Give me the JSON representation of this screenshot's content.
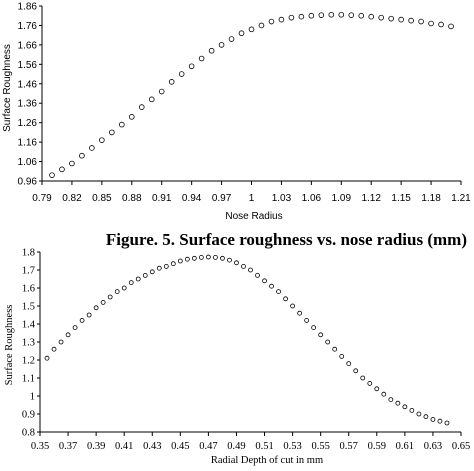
{
  "chart_data": [
    {
      "type": "scatter",
      "title": "",
      "xlabel": "Nose Radius",
      "ylabel": "Surface Roughness",
      "xlim": [
        0.79,
        1.21
      ],
      "ylim": [
        0.96,
        1.86
      ],
      "x_ticks": [
        0.79,
        0.82,
        0.85,
        0.88,
        0.91,
        0.94,
        0.97,
        1,
        1.03,
        1.06,
        1.09,
        1.12,
        1.15,
        1.18,
        1.21
      ],
      "x_tick_labels": [
        "0.79",
        "0.82",
        "0.85",
        "0.88",
        "0.91",
        "0.94",
        "0.97",
        "1",
        "1.03",
        "1.06",
        "1.09",
        "1.12",
        "1.15",
        "1.18",
        "1.21"
      ],
      "y_ticks": [
        0.96,
        1.06,
        1.16,
        1.26,
        1.36,
        1.46,
        1.56,
        1.66,
        1.76,
        1.86
      ],
      "y_tick_labels": [
        "0.96",
        "1.06",
        "1.16",
        "1.26",
        "1.36",
        "1.46",
        "1.56",
        "1.66",
        "1.76",
        "1.86"
      ],
      "grid": false,
      "legend": "none",
      "marker": "open-circle",
      "series": [
        {
          "x": [
            0.8,
            0.81,
            0.82,
            0.83,
            0.84,
            0.85,
            0.86,
            0.87,
            0.88,
            0.89,
            0.9,
            0.91,
            0.92,
            0.93,
            0.94,
            0.95,
            0.96,
            0.97,
            0.98,
            0.99,
            1.0,
            1.01,
            1.02,
            1.03,
            1.04,
            1.05,
            1.06,
            1.07,
            1.08,
            1.09,
            1.1,
            1.11,
            1.12,
            1.13,
            1.14,
            1.15,
            1.16,
            1.17,
            1.18,
            1.19,
            1.2
          ],
          "y": [
            0.99,
            1.02,
            1.05,
            1.09,
            1.13,
            1.17,
            1.21,
            1.25,
            1.29,
            1.34,
            1.38,
            1.42,
            1.47,
            1.51,
            1.55,
            1.59,
            1.63,
            1.66,
            1.69,
            1.72,
            1.74,
            1.76,
            1.78,
            1.79,
            1.8,
            1.805,
            1.81,
            1.813,
            1.815,
            1.815,
            1.813,
            1.81,
            1.805,
            1.8,
            1.795,
            1.79,
            1.785,
            1.78,
            1.77,
            1.765,
            1.755
          ]
        }
      ]
    },
    {
      "type": "scatter",
      "title": "",
      "xlabel": "Radial Depth of cut in mm",
      "ylabel": "Surface Roughness",
      "xlim": [
        0.35,
        0.65
      ],
      "ylim": [
        0.8,
        1.8
      ],
      "x_ticks": [
        0.35,
        0.37,
        0.39,
        0.41,
        0.43,
        0.45,
        0.47,
        0.49,
        0.51,
        0.53,
        0.55,
        0.57,
        0.59,
        0.61,
        0.63,
        0.65
      ],
      "x_tick_labels": [
        "0.35",
        "0.37",
        "0.39",
        "0.41",
        "0.43",
        "0.45",
        "0.47",
        "0.49",
        "0.51",
        "0.53",
        "0.55",
        "0.57",
        "0.59",
        "0.61",
        "0.63",
        "0.65"
      ],
      "y_ticks": [
        0.8,
        0.9,
        1,
        1.1,
        1.2,
        1.3,
        1.4,
        1.5,
        1.6,
        1.7,
        1.8
      ],
      "y_tick_labels": [
        "0.8",
        "0.9",
        "1",
        "1.1",
        "1.2",
        "1.3",
        "1.4",
        "1.5",
        "1.6",
        "1.7",
        "1.8"
      ],
      "grid": false,
      "legend": "none",
      "marker": "open-circle",
      "series": [
        {
          "x": [
            0.355,
            0.36,
            0.365,
            0.37,
            0.375,
            0.38,
            0.385,
            0.39,
            0.395,
            0.4,
            0.405,
            0.41,
            0.415,
            0.42,
            0.425,
            0.43,
            0.435,
            0.44,
            0.445,
            0.45,
            0.455,
            0.46,
            0.465,
            0.47,
            0.475,
            0.48,
            0.485,
            0.49,
            0.495,
            0.5,
            0.505,
            0.51,
            0.515,
            0.52,
            0.525,
            0.53,
            0.535,
            0.54,
            0.545,
            0.55,
            0.555,
            0.56,
            0.565,
            0.57,
            0.575,
            0.58,
            0.585,
            0.59,
            0.595,
            0.6,
            0.605,
            0.61,
            0.615,
            0.62,
            0.625,
            0.63,
            0.635,
            0.64
          ],
          "y": [
            1.21,
            1.26,
            1.3,
            1.34,
            1.38,
            1.42,
            1.45,
            1.49,
            1.52,
            1.55,
            1.58,
            1.6,
            1.63,
            1.65,
            1.67,
            1.69,
            1.71,
            1.72,
            1.735,
            1.75,
            1.76,
            1.765,
            1.77,
            1.772,
            1.77,
            1.765,
            1.755,
            1.74,
            1.72,
            1.7,
            1.67,
            1.64,
            1.61,
            1.58,
            1.54,
            1.5,
            1.46,
            1.42,
            1.38,
            1.34,
            1.3,
            1.26,
            1.22,
            1.18,
            1.14,
            1.1,
            1.07,
            1.04,
            1.01,
            0.98,
            0.96,
            0.94,
            0.92,
            0.9,
            0.885,
            0.87,
            0.86,
            0.85
          ]
        }
      ]
    }
  ],
  "captions": {
    "figure5": "Figure. 5. Surface roughness vs. nose radius (mm)"
  }
}
